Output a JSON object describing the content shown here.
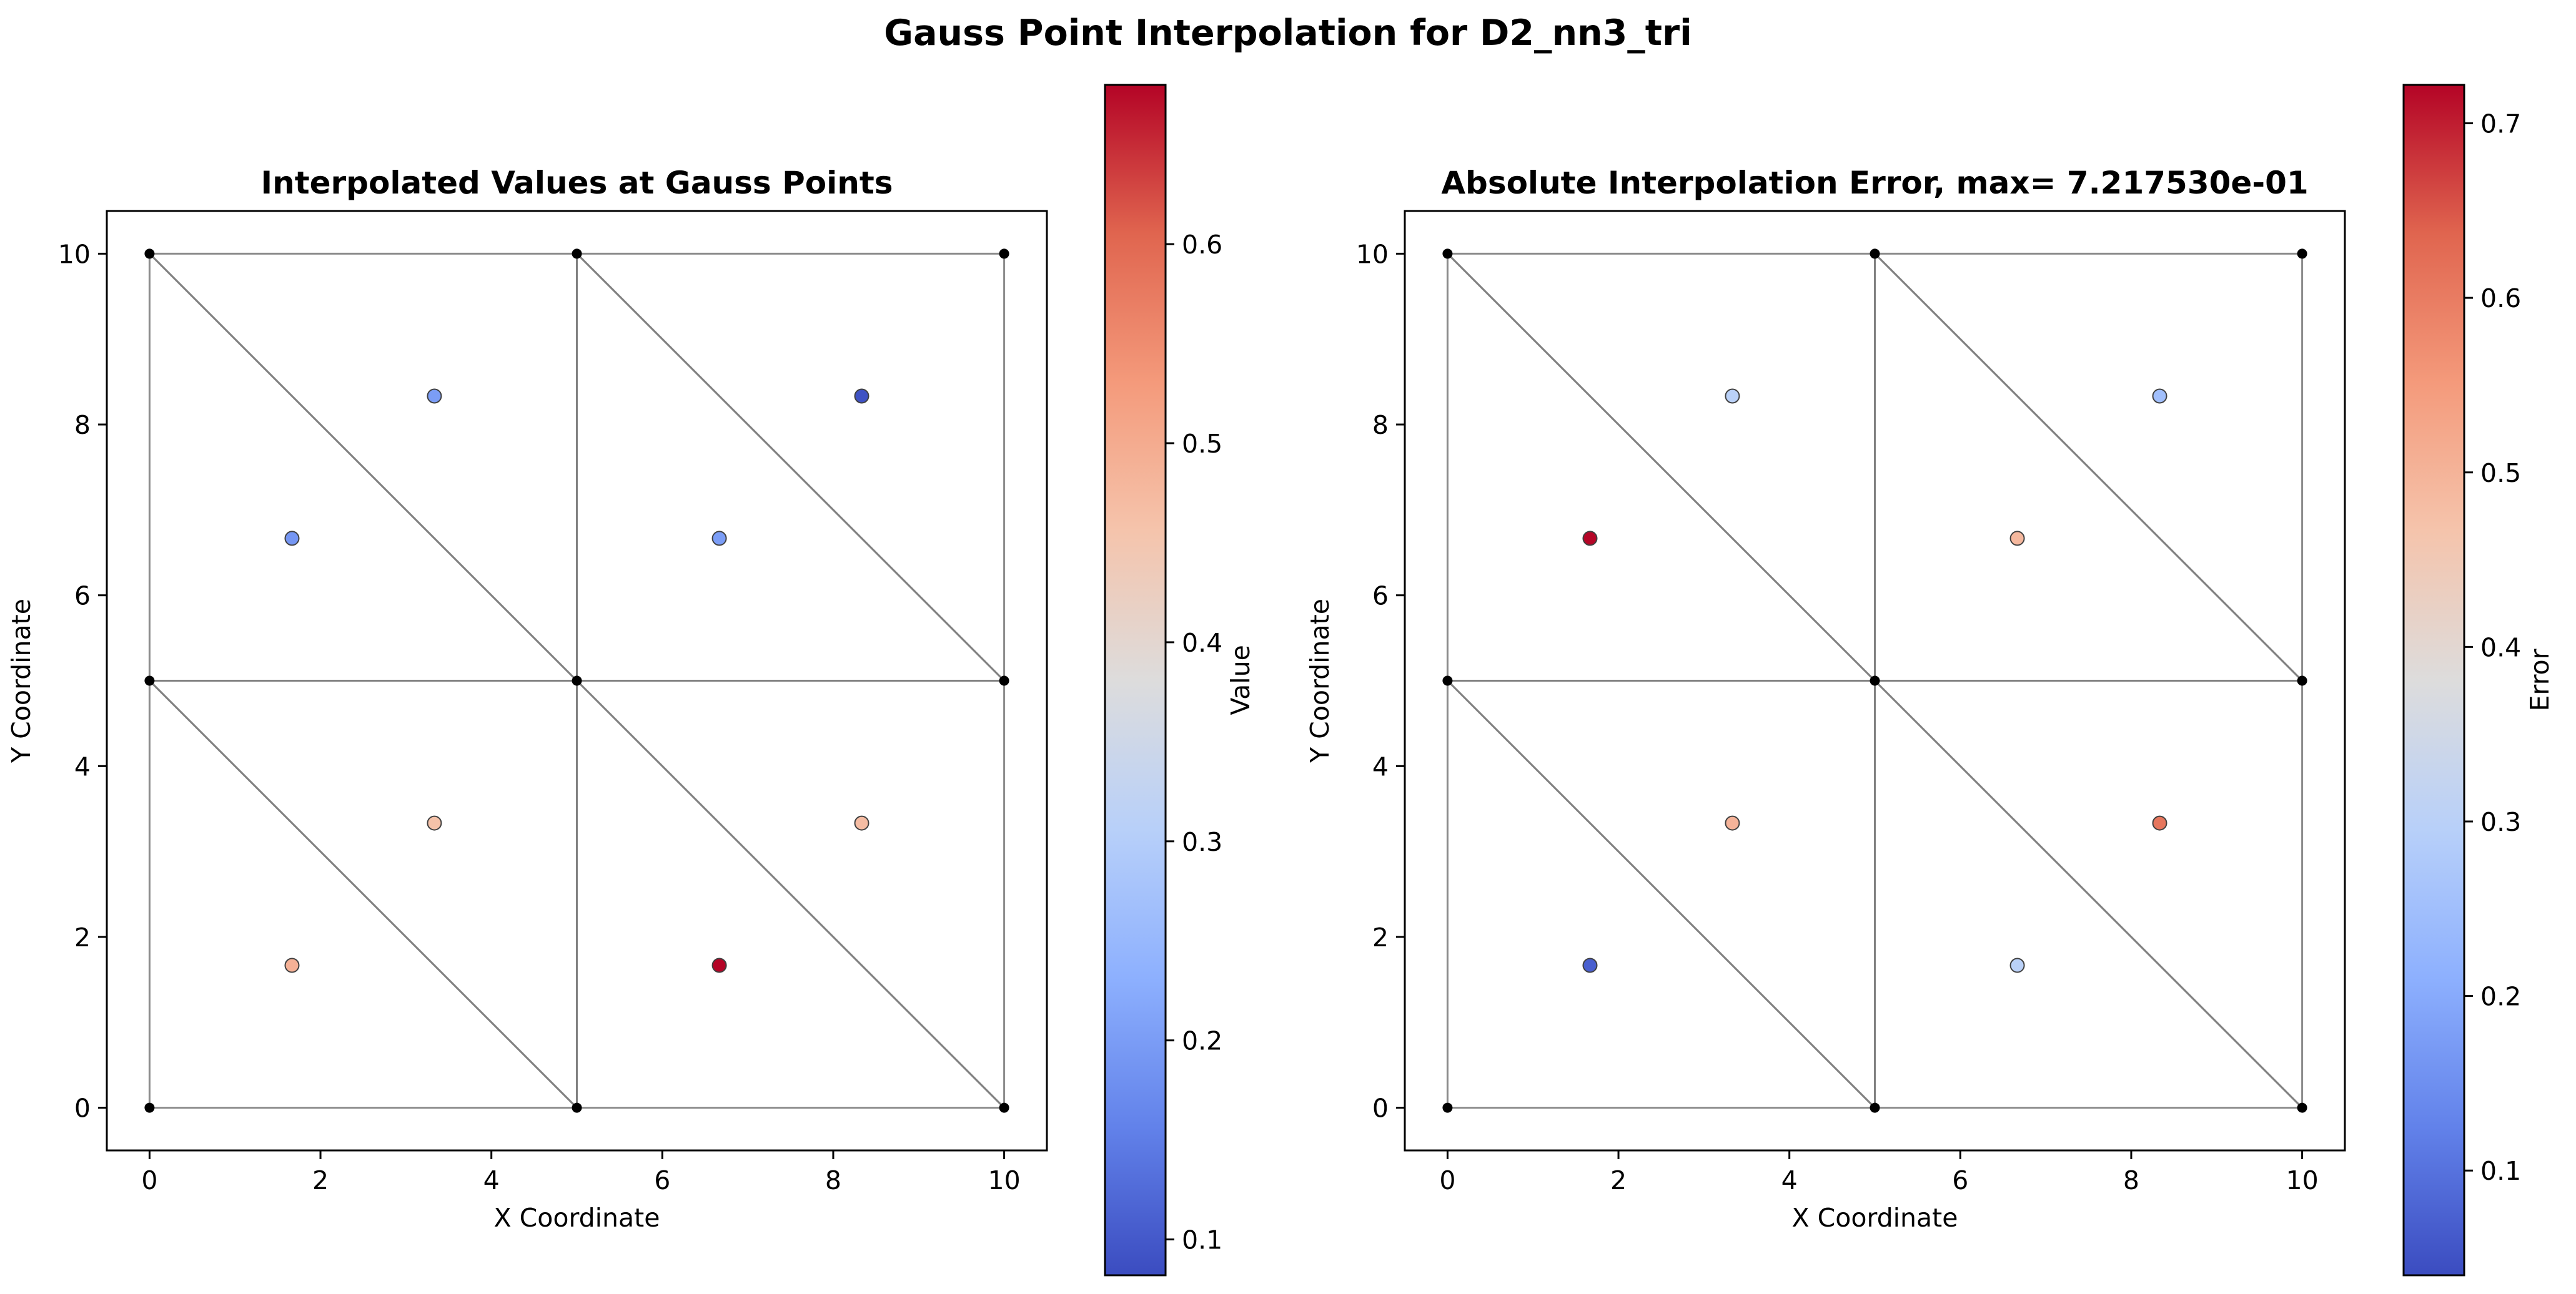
{
  "figure": {
    "title": "Gauss Point Interpolation for D2_nn3_tri"
  },
  "colormap": {
    "name": "coolwarm",
    "stops": [
      "#3b4cc0",
      "#6282ea",
      "#8db0fe",
      "#b8d0f9",
      "#dddcdc",
      "#f5c4ac",
      "#f49a7b",
      "#e0654f",
      "#b40426"
    ]
  },
  "colors": {
    "mesh_edge": "#808080",
    "node": "#000000",
    "point_edge": "#404040"
  },
  "chart_data": [
    {
      "type": "scatter",
      "title": "Interpolated Values at Gauss Points",
      "xlabel": "X Coordinate",
      "ylabel": "Y Coordinate",
      "xlim": [
        -0.5,
        10.5
      ],
      "ylim": [
        -0.5,
        10.5
      ],
      "xticks": [
        0,
        2,
        4,
        6,
        8,
        10
      ],
      "yticks": [
        0,
        2,
        4,
        6,
        8,
        10
      ],
      "colorbar": {
        "label": "Value",
        "range": [
          0.082,
          0.68
        ],
        "ticks": [
          0.1,
          0.2,
          0.3,
          0.4,
          0.5,
          0.6
        ]
      },
      "mesh": {
        "nodes": [
          [
            0,
            0
          ],
          [
            5,
            0
          ],
          [
            10,
            0
          ],
          [
            0,
            5
          ],
          [
            5,
            5
          ],
          [
            10,
            5
          ],
          [
            0,
            10
          ],
          [
            5,
            10
          ],
          [
            10,
            10
          ]
        ],
        "triangles": [
          [
            0,
            1,
            3
          ],
          [
            1,
            4,
            3
          ],
          [
            1,
            2,
            4
          ],
          [
            2,
            5,
            4
          ],
          [
            3,
            4,
            6
          ],
          [
            4,
            7,
            6
          ],
          [
            4,
            5,
            7
          ],
          [
            5,
            8,
            7
          ]
        ]
      },
      "points": [
        {
          "x": 1.667,
          "y": 1.667,
          "value": 0.49
        },
        {
          "x": 3.333,
          "y": 3.333,
          "value": 0.46
        },
        {
          "x": 6.667,
          "y": 1.667,
          "value": 0.68
        },
        {
          "x": 8.333,
          "y": 3.333,
          "value": 0.47
        },
        {
          "x": 1.667,
          "y": 6.667,
          "value": 0.19
        },
        {
          "x": 3.333,
          "y": 8.333,
          "value": 0.2
        },
        {
          "x": 6.667,
          "y": 6.667,
          "value": 0.2
        },
        {
          "x": 8.333,
          "y": 8.333,
          "value": 0.09
        }
      ]
    },
    {
      "type": "scatter",
      "title": "Absolute Interpolation Error, max= 7.217530e-01",
      "xlabel": "X Coordinate",
      "ylabel": "Y Coordinate",
      "xlim": [
        -0.5,
        10.5
      ],
      "ylim": [
        -0.5,
        10.5
      ],
      "xticks": [
        0,
        2,
        4,
        6,
        8,
        10
      ],
      "yticks": [
        0,
        2,
        4,
        6,
        8,
        10
      ],
      "colorbar": {
        "label": "Error",
        "range": [
          0.04,
          0.722
        ],
        "ticks": [
          0.1,
          0.2,
          0.3,
          0.4,
          0.5,
          0.6,
          0.7
        ]
      },
      "mesh": {
        "nodes": [
          [
            0,
            0
          ],
          [
            5,
            0
          ],
          [
            10,
            0
          ],
          [
            0,
            5
          ],
          [
            5,
            5
          ],
          [
            10,
            5
          ],
          [
            0,
            10
          ],
          [
            5,
            10
          ],
          [
            10,
            10
          ]
        ],
        "triangles": [
          [
            0,
            1,
            3
          ],
          [
            1,
            4,
            3
          ],
          [
            1,
            2,
            4
          ],
          [
            2,
            5,
            4
          ],
          [
            3,
            4,
            6
          ],
          [
            4,
            7,
            6
          ],
          [
            4,
            5,
            7
          ],
          [
            5,
            8,
            7
          ]
        ]
      },
      "points": [
        {
          "x": 1.667,
          "y": 1.667,
          "value": 0.07
        },
        {
          "x": 3.333,
          "y": 3.333,
          "value": 0.5
        },
        {
          "x": 6.667,
          "y": 1.667,
          "value": 0.3
        },
        {
          "x": 8.333,
          "y": 3.333,
          "value": 0.61
        },
        {
          "x": 1.667,
          "y": 6.667,
          "value": 0.72
        },
        {
          "x": 3.333,
          "y": 8.333,
          "value": 0.3
        },
        {
          "x": 6.667,
          "y": 6.667,
          "value": 0.49
        },
        {
          "x": 8.333,
          "y": 8.333,
          "value": 0.25
        }
      ]
    }
  ]
}
